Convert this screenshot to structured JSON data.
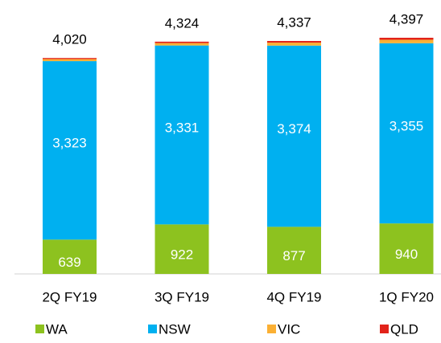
{
  "chart_data": {
    "type": "stacked_bar",
    "categories": [
      "2Q FY19",
      "3Q FY19",
      "4Q FY19",
      "1Q FY20"
    ],
    "series": [
      {
        "name": "WA",
        "color": "#8dc21f",
        "values": [
          639,
          922,
          877,
          940
        ]
      },
      {
        "name": "NSW",
        "color": "#00b0f0",
        "values": [
          3323,
          3331,
          3374,
          3355
        ],
        "value_labels": [
          "3,323",
          "3,331",
          "3,374",
          "3,355"
        ]
      },
      {
        "name": "VIC",
        "color": "#fbb034",
        "values": [
          38,
          45,
          55,
          65
        ]
      },
      {
        "name": "QLD",
        "color": "#e2231a",
        "values": [
          20,
          26,
          31,
          37
        ]
      }
    ],
    "totals": [
      4020,
      4324,
      4337,
      4397
    ],
    "total_labels": [
      "4,020",
      "4,324",
      "4,337",
      "4,397"
    ],
    "legend": "bottom"
  }
}
